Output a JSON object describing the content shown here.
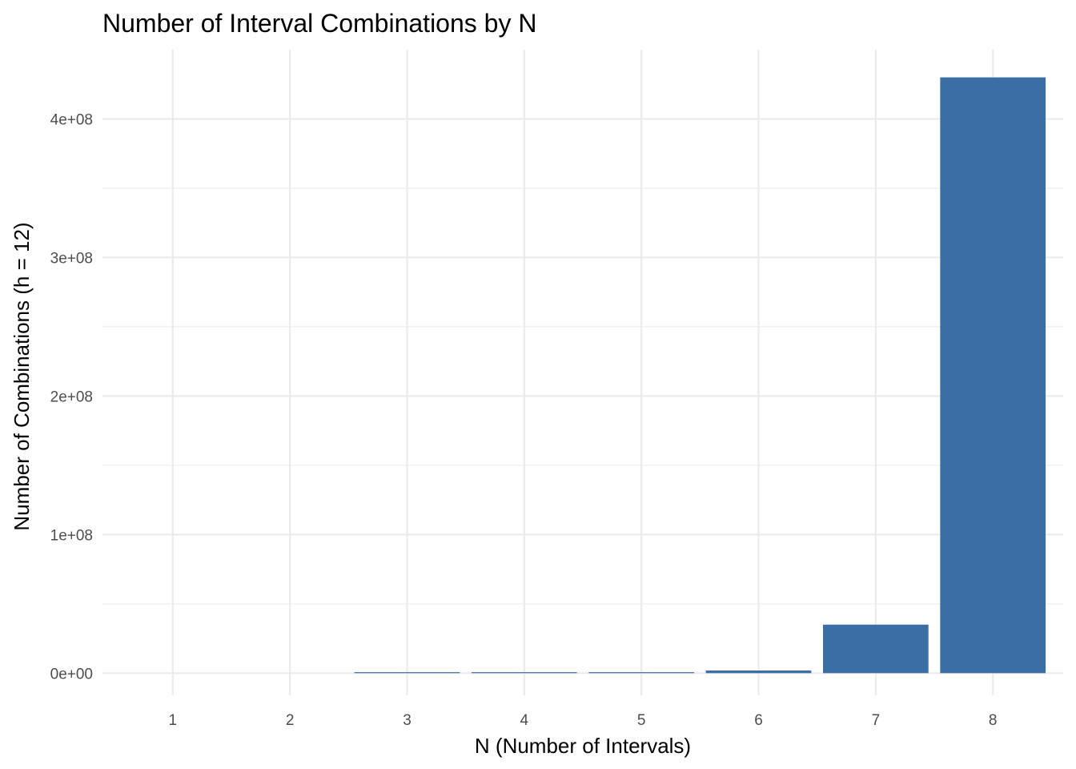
{
  "chart_data": {
    "type": "bar",
    "title": "Number of Interval Combinations by N",
    "xlabel": "N (Number of Intervals)",
    "ylabel": "Number of Combinations (h = 12)",
    "categories": [
      "1",
      "2",
      "3",
      "4",
      "5",
      "6",
      "7",
      "8"
    ],
    "values": [
      1,
      12,
      132,
      1320,
      11880,
      1900000,
      35000000,
      430000000
    ],
    "ylim": [
      -16000000,
      450000000
    ],
    "yticks": [
      0,
      100000000,
      200000000,
      300000000,
      400000000
    ],
    "ytick_labels": [
      "0e+00",
      "1e+08",
      "2e+08",
      "3e+08",
      "4e+08"
    ],
    "grid": true,
    "bar_color": "#3a6ea5"
  }
}
